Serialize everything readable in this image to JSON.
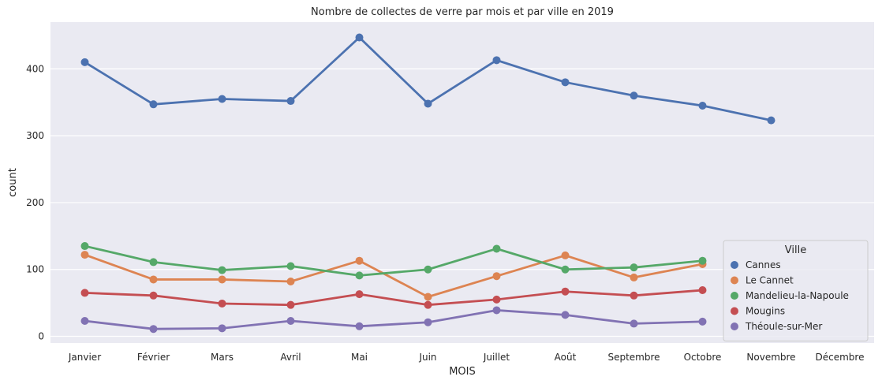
{
  "chart_data": {
    "type": "line",
    "title": "Nombre de collectes de verre par mois et par ville en 2019",
    "xlabel": "MOIS",
    "ylabel": "count",
    "categories": [
      "Janvier",
      "Février",
      "Mars",
      "Avril",
      "Mai",
      "Juin",
      "Juillet",
      "Août",
      "Septembre",
      "Octobre",
      "Novembre",
      "Décembre"
    ],
    "ylim": [
      -10,
      470
    ],
    "yticks": [
      0,
      100,
      200,
      300,
      400
    ],
    "grid": true,
    "legend": {
      "title": "Ville",
      "placement": "bottom-right"
    },
    "series": [
      {
        "name": "Cannes",
        "color": "#4c72b0",
        "values": [
          410,
          347,
          355,
          352,
          447,
          348,
          413,
          380,
          360,
          345,
          323,
          null
        ]
      },
      {
        "name": "Le Cannet",
        "color": "#dd8452",
        "values": [
          122,
          85,
          85,
          82,
          113,
          59,
          90,
          121,
          88,
          108,
          null,
          null
        ]
      },
      {
        "name": "Mandelieu-la-Napoule",
        "color": "#55a868",
        "values": [
          135,
          111,
          99,
          105,
          91,
          100,
          131,
          100,
          103,
          113,
          null,
          null
        ]
      },
      {
        "name": "Mougins",
        "color": "#c44e52",
        "values": [
          65,
          61,
          49,
          47,
          63,
          47,
          55,
          67,
          61,
          69,
          null,
          null
        ]
      },
      {
        "name": "Théoule-sur-Mer",
        "color": "#8172b3",
        "values": [
          23,
          11,
          12,
          23,
          15,
          21,
          39,
          32,
          19,
          22,
          null,
          null
        ]
      }
    ]
  }
}
